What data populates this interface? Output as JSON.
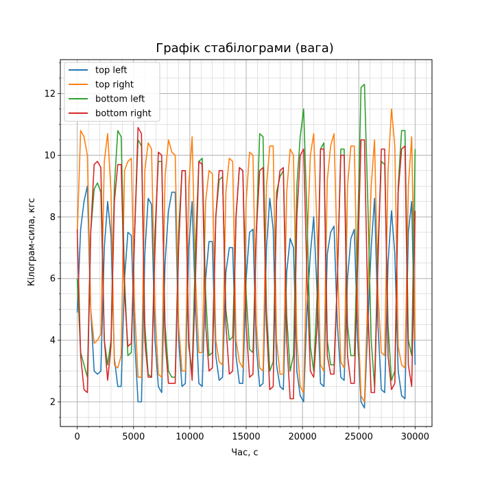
{
  "chart_data": {
    "type": "line",
    "title": "Графік стабілограми (вага)",
    "xlabel": "Час, с",
    "ylabel": "Кілограм-сила, кгс",
    "xlim": [
      -1500,
      31500
    ],
    "ylim": [
      1.2,
      13.1
    ],
    "xticks": [
      0,
      5000,
      10000,
      15000,
      20000,
      25000,
      30000
    ],
    "yticks": [
      2,
      4,
      6,
      8,
      10,
      12
    ],
    "grid": true,
    "minor_grid": true,
    "legend_position": "top-left",
    "colors": [
      "#1f77b4",
      "#ff7f0e",
      "#2ca02c",
      "#d62728"
    ],
    "x": [
      0,
      300,
      600,
      900,
      1200,
      1500,
      1800,
      2100,
      2400,
      2700,
      3000,
      3300,
      3600,
      3900,
      4200,
      4500,
      4800,
      5100,
      5400,
      5700,
      6000,
      6300,
      6600,
      6900,
      7200,
      7500,
      7800,
      8100,
      8400,
      8700,
      9000,
      9300,
      9600,
      9900,
      10200,
      10500,
      10800,
      11100,
      11400,
      11700,
      12000,
      12300,
      12600,
      12900,
      13200,
      13500,
      13800,
      14100,
      14400,
      14700,
      15000,
      15300,
      15600,
      15900,
      16200,
      16500,
      16800,
      17100,
      17400,
      17700,
      18000,
      18300,
      18600,
      18900,
      19200,
      19500,
      19800,
      20100,
      20400,
      20700,
      21000,
      21300,
      21600,
      21900,
      22200,
      22500,
      22800,
      23100,
      23400,
      23700,
      24000,
      24300,
      24600,
      24900,
      25200,
      25500,
      25800,
      26100,
      26400,
      26700,
      27000,
      27300,
      27600,
      27900,
      28200,
      28500,
      28800,
      29100,
      29400,
      29700,
      30000
    ],
    "series": [
      {
        "name": "top left",
        "values": [
          4.9,
          7.6,
          8.5,
          9.0,
          5.0,
          3.0,
          2.9,
          3.0,
          7.0,
          8.5,
          7.4,
          3.4,
          2.5,
          2.5,
          6.0,
          7.5,
          7.4,
          4.0,
          2.0,
          2.0,
          6.8,
          8.6,
          8.4,
          4.0,
          2.5,
          2.3,
          6.5,
          8.2,
          8.8,
          8.8,
          4.0,
          2.5,
          2.6,
          7.0,
          8.5,
          5.0,
          2.6,
          2.5,
          6.0,
          7.2,
          7.2,
          3.5,
          2.7,
          2.8,
          6.2,
          7.0,
          7.0,
          3.5,
          2.6,
          2.6,
          6.0,
          7.5,
          7.6,
          3.8,
          2.5,
          2.6,
          7.0,
          8.6,
          7.6,
          3.2,
          2.5,
          2.4,
          6.2,
          7.3,
          7.0,
          3.0,
          2.2,
          2.0,
          5.0,
          6.8,
          8.0,
          5.5,
          2.6,
          2.5,
          6.8,
          7.5,
          7.7,
          4.5,
          2.8,
          2.7,
          6.0,
          7.3,
          7.6,
          4.0,
          2.0,
          1.8,
          4.5,
          7.0,
          8.6,
          4.5,
          2.4,
          2.3,
          6.5,
          8.2,
          6.8,
          3.0,
          2.2,
          2.1,
          7.5,
          8.5,
          3.2
        ]
      },
      {
        "name": "top right",
        "values": [
          7.4,
          10.8,
          10.6,
          10.0,
          5.0,
          3.9,
          4.0,
          4.2,
          9.8,
          10.7,
          8.8,
          3.2,
          3.1,
          3.5,
          9.5,
          9.8,
          9.9,
          5.0,
          2.8,
          2.8,
          9.5,
          10.4,
          10.2,
          5.0,
          2.9,
          2.8,
          9.3,
          10.5,
          10.1,
          10.0,
          4.5,
          3.0,
          3.0,
          9.0,
          10.6,
          6.0,
          3.6,
          3.6,
          8.5,
          9.5,
          9.4,
          4.0,
          3.3,
          3.2,
          8.8,
          9.9,
          9.8,
          4.0,
          3.3,
          3.1,
          8.5,
          10.1,
          10.0,
          4.5,
          3.1,
          3.0,
          9.0,
          10.3,
          10.3,
          4.0,
          2.9,
          2.9,
          8.8,
          10.2,
          10.0,
          4.0,
          2.5,
          2.3,
          7.0,
          10.0,
          10.7,
          7.5,
          3.2,
          3.0,
          9.2,
          10.3,
          10.7,
          6.5,
          3.3,
          3.1,
          9.0,
          10.3,
          10.3,
          5.0,
          2.2,
          2.0,
          5.5,
          9.0,
          10.5,
          5.5,
          3.6,
          3.5,
          9.5,
          11.5,
          10.3,
          3.8,
          3.2,
          3.1,
          9.0,
          10.6,
          4.0
        ]
      },
      {
        "name": "bottom left",
        "values": [
          6.0,
          3.6,
          3.2,
          2.8,
          7.5,
          8.9,
          9.1,
          8.8,
          4.0,
          3.2,
          4.0,
          9.0,
          10.8,
          10.6,
          6.0,
          3.5,
          3.6,
          7.5,
          10.5,
          10.3,
          4.5,
          2.9,
          2.8,
          7.5,
          9.8,
          9.8,
          4.5,
          3.0,
          2.8,
          2.8,
          7.5,
          9.5,
          9.5,
          3.8,
          3.0,
          7.0,
          9.8,
          9.9,
          5.5,
          3.5,
          3.6,
          8.0,
          9.2,
          9.3,
          5.0,
          4.0,
          4.1,
          8.0,
          9.6,
          9.5,
          5.5,
          3.7,
          3.6,
          7.5,
          10.7,
          10.6,
          5.0,
          3.0,
          3.3,
          8.8,
          9.3,
          9.5,
          4.8,
          3.0,
          3.5,
          9.0,
          10.6,
          11.5,
          8.0,
          3.8,
          3.0,
          5.5,
          10.2,
          10.4,
          4.0,
          3.2,
          3.2,
          6.0,
          10.2,
          10.2,
          4.5,
          3.5,
          3.5,
          7.5,
          12.2,
          12.3,
          8.5,
          4.0,
          2.5,
          7.0,
          9.8,
          9.7,
          4.5,
          2.7,
          3.0,
          9.0,
          10.8,
          10.8,
          4.0,
          3.5,
          10.2
        ]
      },
      {
        "name": "bottom right",
        "values": [
          7.6,
          3.5,
          2.4,
          2.3,
          7.5,
          9.7,
          9.8,
          9.6,
          4.0,
          2.7,
          3.8,
          8.5,
          9.7,
          9.7,
          5.5,
          3.8,
          3.9,
          7.5,
          10.9,
          10.7,
          4.0,
          2.8,
          2.8,
          7.0,
          10.1,
          10.0,
          4.0,
          2.6,
          2.6,
          2.6,
          7.0,
          9.5,
          9.5,
          4.0,
          2.7,
          6.0,
          9.8,
          9.7,
          4.5,
          3.0,
          3.1,
          8.0,
          9.5,
          9.5,
          4.5,
          2.9,
          3.0,
          8.0,
          9.6,
          9.5,
          4.5,
          2.8,
          2.9,
          7.5,
          9.5,
          9.6,
          4.5,
          2.4,
          2.5,
          8.5,
          9.5,
          9.6,
          4.0,
          2.1,
          2.1,
          8.0,
          10.0,
          10.2,
          6.0,
          3.0,
          2.8,
          4.5,
          10.2,
          10.2,
          3.5,
          2.9,
          2.9,
          6.0,
          10.0,
          10.0,
          3.5,
          2.6,
          2.6,
          6.5,
          10.5,
          10.5,
          5.0,
          2.3,
          2.3,
          6.5,
          10.2,
          10.2,
          3.5,
          2.4,
          2.6,
          8.8,
          10.2,
          10.3,
          3.2,
          2.5,
          8.2
        ]
      }
    ]
  }
}
